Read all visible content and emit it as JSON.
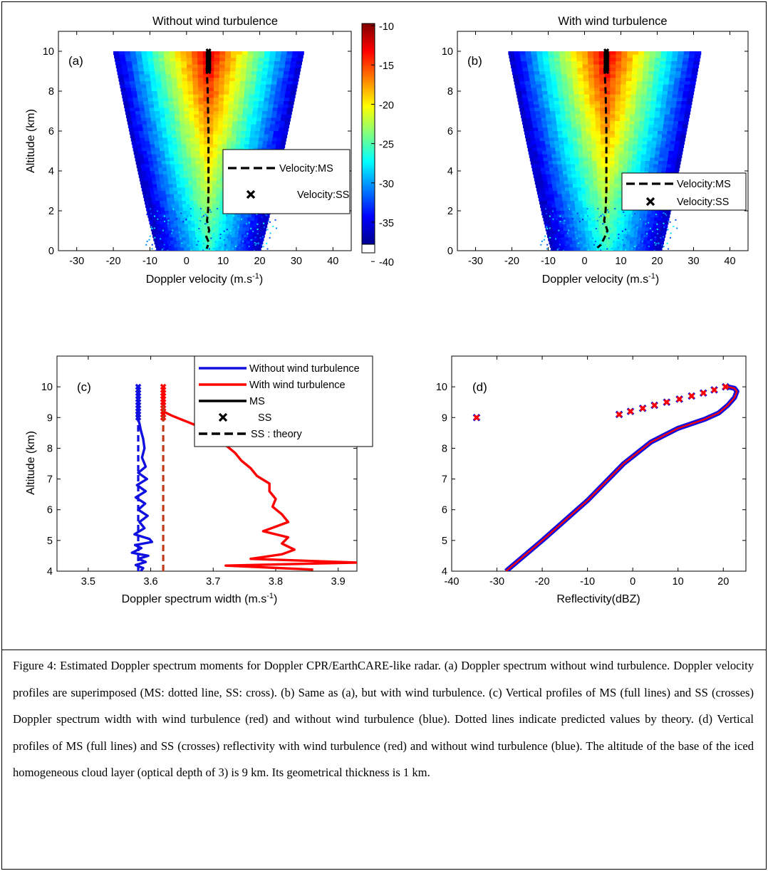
{
  "caption": "Figure 4: Estimated Doppler spectrum moments for Doppler CPR/EarthCARE-like radar. (a) Doppler spectrum without wind turbulence. Doppler velocity profiles are superimposed (MS: dotted line, SS: cross). (b) Same as (a), but with wind turbulence. (c) Vertical profiles of MS (full lines) and SS (crosses) Doppler spectrum width with wind turbulence (red) and without wind turbulence (blue). Dotted lines indicate predicted values by theory. (d) Vertical profiles of MS (full lines) and SS (crosses) reflectivity with wind turbulence (red) and without wind turbulence (blue). The altitude of the base of the iced homogeneous cloud layer (optical depth of 3) is 9 km. Its geometrical thickness is 1 km.",
  "colors": {
    "ms_line": "#000000",
    "ss_cross": "#000000",
    "without": "#1010e0",
    "with": "#ff0000"
  },
  "colorbar": {
    "ticks": [
      "-10",
      "-15",
      "-20",
      "-25",
      "-30",
      "-35",
      "-40"
    ],
    "min": -40,
    "max": -10,
    "colormap": "jet"
  },
  "chart_data": [
    {
      "id": "a",
      "type": "heatmap",
      "panel_label": "(a)",
      "title": "Without wind turbulence",
      "xlabel": "Doppler velocity (m.s",
      "xlabel_sup": "-1",
      "xlabel_end": ")",
      "ylabel": "Altitude (km)",
      "xlim": [
        -35,
        45
      ],
      "ylim": [
        0,
        11
      ],
      "xticks": [
        -30,
        -20,
        -10,
        0,
        10,
        20,
        30,
        40
      ],
      "yticks": [
        0,
        2,
        4,
        6,
        8,
        10
      ],
      "legend": {
        "placement": "center-right",
        "entries": [
          "Velocity:MS",
          "Velocity:SS"
        ]
      },
      "spectrum": {
        "top_altitude": 10,
        "top_range": [
          -20,
          32
        ],
        "bottom_range": [
          -8,
          20
        ],
        "peak_velocity": 6
      },
      "series": [
        {
          "name": "Velocity:MS",
          "style": "dashed",
          "x": [
            5.5,
            5.8,
            6.0,
            6.0,
            6.0,
            5.9,
            5.6,
            6.2,
            5.4,
            6.1,
            5.5
          ],
          "y": [
            9.2,
            8,
            6,
            4.5,
            3,
            2,
            1.5,
            1,
            0.7,
            0.4,
            0.1
          ]
        },
        {
          "name": "Velocity:SS",
          "style": "cross",
          "x": [
            6,
            6,
            6,
            6,
            6,
            6,
            6,
            6,
            6,
            6,
            6
          ],
          "y": [
            9.0,
            9.1,
            9.2,
            9.3,
            9.4,
            9.5,
            9.6,
            9.7,
            9.8,
            9.9,
            10.0
          ]
        }
      ]
    },
    {
      "id": "b",
      "type": "heatmap",
      "panel_label": "(b)",
      "title": "With wind turbulence",
      "xlabel": "Doppler velocity (m.s",
      "xlabel_sup": "-1",
      "xlabel_end": ")",
      "ylabel": "",
      "xlim": [
        -35,
        45
      ],
      "ylim": [
        0,
        11
      ],
      "xticks": [
        -30,
        -20,
        -10,
        0,
        10,
        20,
        30,
        40
      ],
      "yticks": [
        0,
        2,
        4,
        6,
        8,
        10
      ],
      "legend": {
        "placement": "right",
        "entries": [
          "Velocity:MS",
          "Velocity:SS"
        ]
      },
      "spectrum": {
        "top_altitude": 10,
        "top_range": [
          -21,
          32
        ],
        "bottom_range": [
          -9,
          21
        ],
        "peak_velocity": 6
      },
      "series": [
        {
          "name": "Velocity:MS",
          "style": "dashed",
          "x": [
            5.5,
            5.8,
            6.0,
            6.0,
            6.0,
            5.8,
            5.4,
            6.3,
            5.6,
            4.5,
            3.5
          ],
          "y": [
            9.2,
            8,
            6,
            4.5,
            3,
            2,
            1.5,
            1,
            0.7,
            0.3,
            0.15
          ]
        },
        {
          "name": "Velocity:SS",
          "style": "cross",
          "x": [
            6,
            6,
            6,
            6,
            6,
            6,
            6,
            6,
            6,
            6,
            6
          ],
          "y": [
            9.0,
            9.1,
            9.2,
            9.3,
            9.4,
            9.5,
            9.6,
            9.7,
            9.8,
            9.9,
            10.0
          ]
        }
      ]
    },
    {
      "id": "c",
      "type": "line",
      "panel_label": "(c)",
      "title": "",
      "xlabel": "Doppler spectrum width (m.s",
      "xlabel_sup": "-1",
      "xlabel_end": ")",
      "ylabel": "Altitude (km)",
      "xlim": [
        3.45,
        3.93
      ],
      "ylim": [
        4,
        11
      ],
      "xticks": [
        3.5,
        3.6,
        3.7,
        3.8,
        3.9
      ],
      "yticks": [
        4,
        5,
        6,
        7,
        8,
        9,
        10
      ],
      "legend": {
        "placement": "top-right",
        "entries": [
          "Without wind turbulence",
          "With wind turbulence",
          "MS",
          "SS",
          "SS : theory"
        ]
      },
      "series": [
        {
          "name": "Without wind turbulence",
          "variant": "MS",
          "color": "#1010e0",
          "x": [
            3.578,
            3.579,
            3.582,
            3.584,
            3.588,
            3.59,
            3.586,
            3.592,
            3.58,
            3.594,
            3.578,
            3.592,
            3.576,
            3.591,
            3.58,
            3.595,
            3.582,
            3.59,
            3.574,
            3.598,
            3.602,
            3.575,
            3.585,
            3.57,
            3.596,
            3.58,
            3.592,
            3.576,
            3.588,
            3.584
          ],
          "y": [
            9.2,
            9.0,
            8.8,
            8.6,
            8.3,
            8.0,
            7.7,
            7.4,
            7.2,
            7.0,
            6.8,
            6.6,
            6.4,
            6.2,
            6.0,
            5.8,
            5.6,
            5.4,
            5.2,
            5.05,
            4.95,
            4.85,
            4.75,
            4.6,
            4.5,
            4.4,
            4.3,
            4.2,
            4.1,
            4.0
          ]
        },
        {
          "name": "Without wind turbulence",
          "variant": "SS",
          "color": "#1010e0",
          "x": [
            3.58,
            3.58,
            3.58,
            3.58,
            3.58,
            3.58,
            3.58,
            3.58,
            3.58,
            3.58,
            3.58
          ],
          "y": [
            9.0,
            9.1,
            9.2,
            9.3,
            9.4,
            9.5,
            9.6,
            9.7,
            9.8,
            9.9,
            10.0
          ]
        },
        {
          "name": "Without wind turbulence",
          "variant": "SS : theory",
          "color": "#1010e0",
          "x": [
            3.58,
            3.58
          ],
          "y": [
            4,
            9.5
          ]
        },
        {
          "name": "With wind turbulence",
          "variant": "MS",
          "color": "#ff0000",
          "x": [
            3.62,
            3.635,
            3.66,
            3.69,
            3.71,
            3.72,
            3.735,
            3.745,
            3.76,
            3.77,
            3.79,
            3.79,
            3.8,
            3.795,
            3.81,
            3.82,
            3.78,
            3.82,
            3.81,
            3.83,
            3.81,
            3.76,
            3.93,
            3.72,
            3.86
          ],
          "y": [
            9.2,
            9.05,
            8.85,
            8.6,
            8.35,
            8.1,
            7.85,
            7.6,
            7.35,
            7.1,
            6.85,
            6.6,
            6.35,
            6.1,
            5.85,
            5.6,
            5.3,
            5.1,
            4.9,
            4.7,
            4.55,
            4.4,
            4.28,
            4.18,
            4.05
          ]
        },
        {
          "name": "With wind turbulence",
          "variant": "SS",
          "color": "#ff0000",
          "x": [
            3.62,
            3.62,
            3.62,
            3.62,
            3.62,
            3.62,
            3.62,
            3.62,
            3.62,
            3.62,
            3.62
          ],
          "y": [
            9.0,
            9.1,
            9.2,
            9.3,
            9.4,
            9.5,
            9.6,
            9.7,
            9.8,
            9.9,
            10.0
          ]
        },
        {
          "name": "With wind turbulence",
          "variant": "SS : theory",
          "color": "#c03a1a",
          "x": [
            3.62,
            3.62
          ],
          "y": [
            4,
            9.5
          ]
        }
      ]
    },
    {
      "id": "d",
      "type": "line",
      "panel_label": "(d)",
      "title": "",
      "xlabel": "Reflectivity(dBZ)",
      "xlabel_sup": "",
      "xlabel_end": "",
      "ylabel": "",
      "xlim": [
        -40,
        25
      ],
      "ylim": [
        4,
        11
      ],
      "xticks": [
        -40,
        -30,
        -20,
        -10,
        0,
        10,
        20
      ],
      "yticks": [
        4,
        5,
        6,
        7,
        8,
        9,
        10
      ],
      "series": [
        {
          "name": "MS",
          "x": [
            -28,
            -20,
            -10,
            -2,
            4,
            10,
            16,
            19,
            21,
            22.5,
            23,
            22.5,
            21
          ],
          "y": [
            4.0,
            5.0,
            6.3,
            7.5,
            8.2,
            8.65,
            8.95,
            9.15,
            9.4,
            9.65,
            9.85,
            9.95,
            10.0
          ]
        },
        {
          "name": "SS",
          "x": [
            -34.5,
            -3,
            -0.5,
            2.2,
            4.8,
            7.5,
            10.3,
            13,
            15.6,
            18,
            20.5
          ],
          "y": [
            9.0,
            9.1,
            9.2,
            9.3,
            9.4,
            9.5,
            9.6,
            9.7,
            9.8,
            9.9,
            10.0
          ]
        }
      ]
    }
  ]
}
